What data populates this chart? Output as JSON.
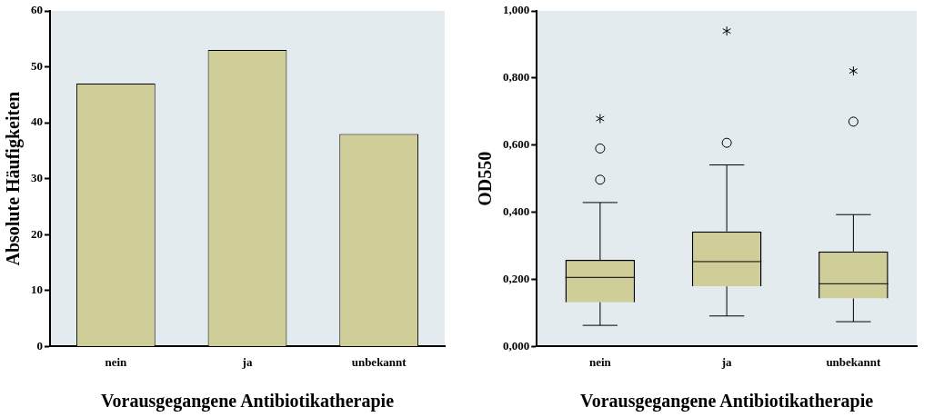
{
  "chart_data": [
    {
      "type": "bar",
      "categories": [
        "nein",
        "ja",
        "unbekannt"
      ],
      "values": [
        47,
        53,
        38
      ],
      "color": "#d0ce98",
      "xlabel": "Vorausgegangene Antibiotikatherapie",
      "ylabel": "Absolute Häufigkeiten",
      "ylim": [
        0,
        60
      ],
      "yticks": [
        0,
        10,
        20,
        30,
        40,
        50,
        60
      ],
      "legend": false
    },
    {
      "type": "box",
      "categories": [
        "nein",
        "ja",
        "unbekannt"
      ],
      "color": "#d0ce98",
      "xlabel": "Vorausgegangene Antibiotikatherapie",
      "ylabel": "OD550",
      "ylim": [
        0,
        1
      ],
      "yticks": [
        {
          "value": 0,
          "label": "0,000"
        },
        {
          "value": 0.2,
          "label": "0,200"
        },
        {
          "value": 0.4,
          "label": "0,400"
        },
        {
          "value": 0.6,
          "label": "0,600"
        },
        {
          "value": 0.8,
          "label": "0,800"
        },
        {
          "value": 1,
          "label": "1,000"
        }
      ],
      "legend": false,
      "boxes": [
        {
          "low": 0.063,
          "q1": 0.132,
          "median": 0.206,
          "q3": 0.258,
          "high": 0.429,
          "outliers": [
            0.497,
            0.59,
            0.679
          ]
        },
        {
          "low": 0.091,
          "q1": 0.179,
          "median": 0.253,
          "q3": 0.343,
          "high": 0.541,
          "outliers": [
            0.607,
            0.94
          ]
        },
        {
          "low": 0.074,
          "q1": 0.143,
          "median": 0.187,
          "q3": 0.283,
          "high": 0.393,
          "outliers": [
            0.67,
            0.821
          ]
        }
      ]
    }
  ]
}
